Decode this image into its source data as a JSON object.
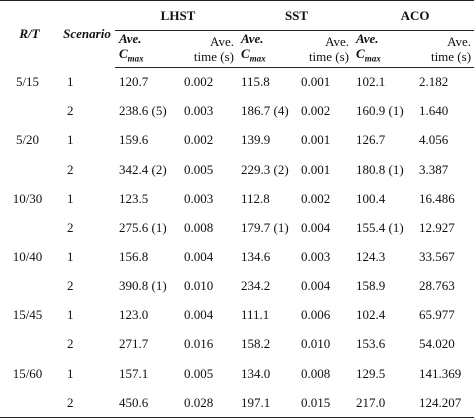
{
  "table": {
    "header": {
      "rt": "R/T",
      "scenario": "Scenario",
      "groups": [
        "LHST",
        "SST",
        "ACO"
      ],
      "cmax": {
        "line1": "Ave.",
        "line2": "C",
        "sub": "max"
      },
      "time": {
        "line1": "Ave.",
        "line2": "time (s)"
      }
    },
    "groups": [
      {
        "rt": "5/15",
        "rows": [
          [
            "1",
            "120.7",
            "0.002",
            "115.8",
            "0.001",
            "102.1",
            "2.182"
          ],
          [
            "2",
            "238.6 (5)",
            "0.003",
            "186.7 (4)",
            "0.002",
            "160.9 (1)",
            "1.640"
          ]
        ]
      },
      {
        "rt": "5/20",
        "rows": [
          [
            "1",
            "159.6",
            "0.002",
            "139.9",
            "0.001",
            "126.7",
            "4.056"
          ],
          [
            "2",
            "342.4 (2)",
            "0.005",
            "229.3 (2)",
            "0.001",
            "180.8 (1)",
            "3.387"
          ]
        ]
      },
      {
        "rt": "10/30",
        "rows": [
          [
            "1",
            "123.5",
            "0.003",
            "112.8",
            "0.002",
            "100.4",
            "16.486"
          ],
          [
            "2",
            "275.6 (1)",
            "0.008",
            "179.7 (1)",
            "0.004",
            "155.4 (1)",
            "12.927"
          ]
        ]
      },
      {
        "rt": "10/40",
        "rows": [
          [
            "1",
            "156.8",
            "0.004",
            "134.6",
            "0.003",
            "124.3",
            "33.567"
          ],
          [
            "2",
            "390.8 (1)",
            "0.010",
            "234.2",
            "0.004",
            "158.9",
            "28.763"
          ]
        ]
      },
      {
        "rt": "15/45",
        "rows": [
          [
            "1",
            "123.0",
            "0.004",
            "111.1",
            "0.006",
            "102.4",
            "65.977"
          ],
          [
            "2",
            "271.7",
            "0.016",
            "158.2",
            "0.010",
            "153.6",
            "54.020"
          ]
        ]
      },
      {
        "rt": "15/60",
        "rows": [
          [
            "1",
            "157.1",
            "0.005",
            "134.0",
            "0.008",
            "129.5",
            "141.369"
          ],
          [
            "2",
            "450.6",
            "0.028",
            "197.1",
            "0.015",
            "217.0",
            "124.207"
          ]
        ]
      }
    ]
  }
}
